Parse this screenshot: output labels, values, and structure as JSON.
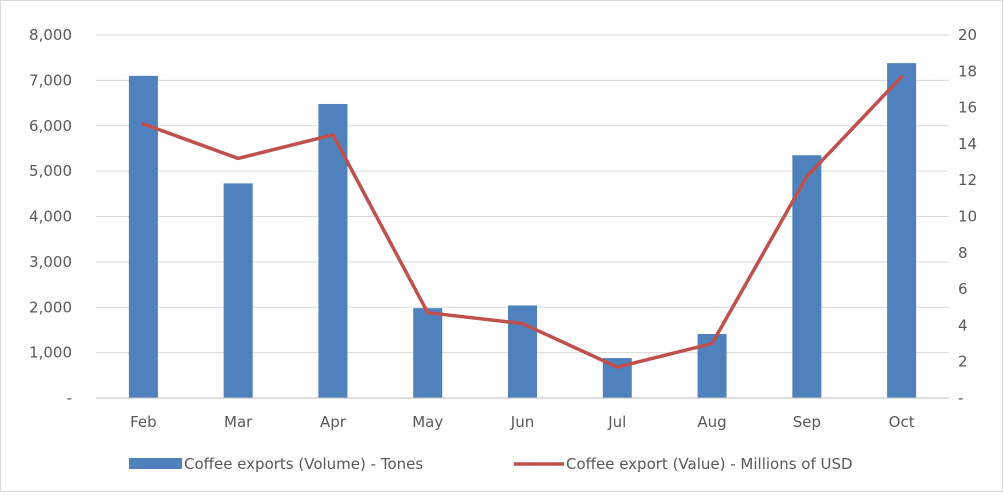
{
  "chart_data": {
    "type": "bar",
    "categories": [
      "Feb",
      "Mar",
      "Apr",
      "May",
      "Jun",
      "Jul",
      "Aug",
      "Sep",
      "Oct"
    ],
    "series": [
      {
        "name": "Coffee exports (Volume) - Tones",
        "type": "bar",
        "axis": "left",
        "color": "#4f81bd",
        "values": [
          7100,
          4730,
          6480,
          1980,
          2040,
          880,
          1410,
          5350,
          7380
        ]
      },
      {
        "name": "Coffee export (Value) - Millions of USD",
        "type": "line",
        "axis": "right",
        "color": "#c0504d",
        "values": [
          15.1,
          13.2,
          14.5,
          4.7,
          4.1,
          1.7,
          3.0,
          12.2,
          17.7
        ]
      }
    ],
    "y_left": {
      "ylim": [
        0,
        8000
      ],
      "ticks": [
        0,
        1000,
        2000,
        3000,
        4000,
        5000,
        6000,
        7000,
        8000
      ],
      "tick_labels": [
        "-",
        "1,000",
        "2,000",
        "3,000",
        "4,000",
        "5,000",
        "6,000",
        "7,000",
        "8,000"
      ]
    },
    "y_right": {
      "ylim": [
        0,
        20
      ],
      "ticks": [
        0,
        2,
        4,
        6,
        8,
        10,
        12,
        14,
        16,
        18,
        20
      ],
      "tick_labels": [
        "-",
        "2",
        "4",
        "6",
        "8",
        "10",
        "12",
        "14",
        "16",
        "18",
        "20"
      ]
    },
    "grid": true,
    "legend_position": "bottom",
    "gridline_color": "#d9d9d9",
    "axis_color": "#bfbfbf"
  }
}
